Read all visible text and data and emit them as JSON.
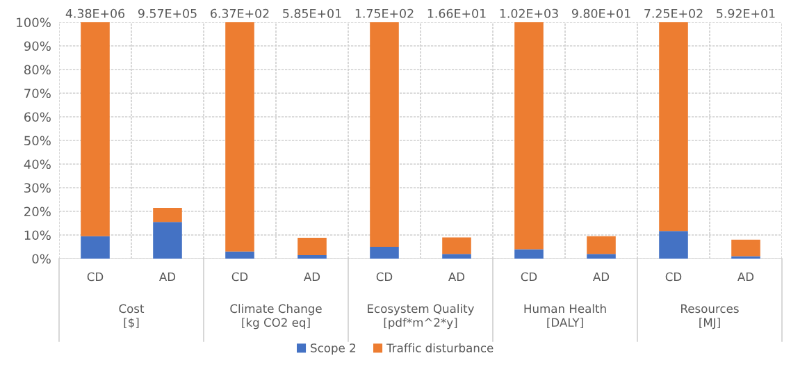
{
  "chart_data": {
    "type": "bar",
    "stacked": true,
    "categories": [
      "CD",
      "AD",
      "CD",
      "AD",
      "CD",
      "AD",
      "CD",
      "AD",
      "CD",
      "AD"
    ],
    "series": [
      {
        "name": "Scope 2",
        "color": "#4472c4",
        "values": [
          9.5,
          15.5,
          3,
          1.5,
          5,
          2,
          4,
          2,
          11.7,
          1
        ]
      },
      {
        "name": "Traffic disturbance",
        "color": "#ed7d31",
        "values": [
          90.5,
          6,
          97,
          7.3,
          95,
          7,
          96,
          7.5,
          88.3,
          7
        ]
      }
    ],
    "annotations": [
      "4.38E+06",
      "9.57E+05",
      "6.37E+02",
      "5.85E+01",
      "1.75E+02",
      "1.66E+01",
      "1.02E+03",
      "9.80E+01",
      "7.25E+02",
      "5.92E+01",
      "Cost\n[$]",
      "Climate Change\n[kg CO2 eq]",
      "Ecosystem Quality\n[pdf*m^2*y]",
      "Human Health\n[DALY]",
      "Resources\n[MJ]"
    ],
    "ylim": [
      0,
      100
    ],
    "yticks": [
      {
        "value": 0,
        "label": "0%"
      },
      {
        "value": 10,
        "label": "10%"
      },
      {
        "value": 20,
        "label": "20%"
      },
      {
        "value": 30,
        "label": "30%"
      },
      {
        "value": 40,
        "label": "40%"
      },
      {
        "value": 50,
        "label": "50%"
      },
      {
        "value": 60,
        "label": "60%"
      },
      {
        "value": 70,
        "label": "70%"
      },
      {
        "value": 80,
        "label": "80%"
      },
      {
        "value": 90,
        "label": "90%"
      },
      {
        "value": 100,
        "label": "100%"
      }
    ],
    "grid": true,
    "legend": "bottom"
  }
}
